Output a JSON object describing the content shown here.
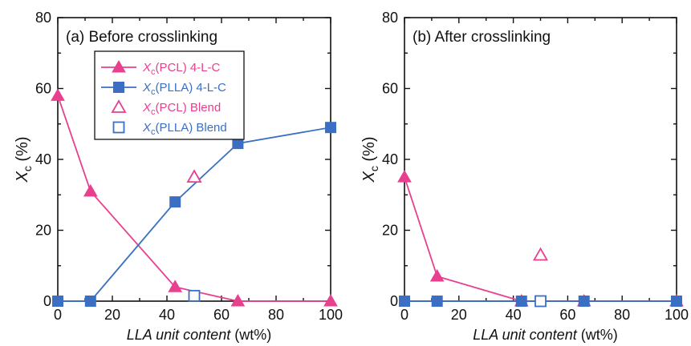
{
  "colors": {
    "pcl": "#e8408e",
    "plla": "#3a6fc4"
  },
  "chart_data": [
    {
      "type": "line",
      "annotation": "(a) Before crosslinking",
      "xlabel_italic": "LLA unit content",
      "xlabel_unit": " (wt%)",
      "ylabel_sym": "X",
      "ylabel_sub": "c",
      "ylabel_unit": " (%)",
      "xlim": [
        0,
        100
      ],
      "ylim": [
        0,
        80
      ],
      "xticks": [
        0,
        20,
        40,
        60,
        80,
        100
      ],
      "yticks": [
        0,
        20,
        40,
        60,
        80
      ],
      "grid": false,
      "legend_position": "top-left",
      "series": [
        {
          "sym": "X",
          "sub": "c",
          "label": "(PCL) 4-L-C",
          "marker": "triangle",
          "filled": true,
          "connected": true,
          "color": "#e8408e",
          "x": [
            0,
            12,
            43,
            66,
            100
          ],
          "y": [
            58,
            31,
            4,
            0,
            0
          ]
        },
        {
          "sym": "X",
          "sub": "c",
          "label": "(PLLA) 4-L-C",
          "marker": "square",
          "filled": true,
          "connected": true,
          "color": "#3a6fc4",
          "x": [
            0,
            12,
            43,
            66,
            100
          ],
          "y": [
            0,
            0,
            28,
            44.5,
            49
          ]
        },
        {
          "sym": "X",
          "sub": "c",
          "label": "(PCL) Blend",
          "marker": "triangle",
          "filled": false,
          "connected": false,
          "color": "#e8408e",
          "x": [
            50
          ],
          "y": [
            35
          ]
        },
        {
          "sym": "X",
          "sub": "c",
          "label": "(PLLA) Blend",
          "marker": "square",
          "filled": false,
          "connected": false,
          "color": "#3a6fc4",
          "x": [
            50
          ],
          "y": [
            1.5
          ]
        }
      ]
    },
    {
      "type": "line",
      "annotation": "(b) After crosslinking",
      "xlabel_italic": "LLA unit content",
      "xlabel_unit": " (wt%)",
      "ylabel_sym": "X",
      "ylabel_sub": "c",
      "ylabel_unit": " (%)",
      "xlim": [
        0,
        100
      ],
      "ylim": [
        0,
        80
      ],
      "xticks": [
        0,
        20,
        40,
        60,
        80,
        100
      ],
      "yticks": [
        0,
        20,
        40,
        60,
        80
      ],
      "grid": false,
      "series": [
        {
          "marker": "triangle",
          "filled": true,
          "connected": true,
          "color": "#e8408e",
          "x": [
            0,
            12,
            43,
            66,
            100
          ],
          "y": [
            35,
            7,
            0,
            0,
            0
          ]
        },
        {
          "marker": "square",
          "filled": true,
          "connected": true,
          "color": "#3a6fc4",
          "x": [
            0,
            12,
            43,
            66,
            100
          ],
          "y": [
            0,
            0,
            0,
            0,
            0
          ]
        },
        {
          "marker": "triangle",
          "filled": false,
          "connected": false,
          "color": "#e8408e",
          "x": [
            50
          ],
          "y": [
            13
          ]
        },
        {
          "marker": "square",
          "filled": false,
          "connected": false,
          "color": "#3a6fc4",
          "x": [
            50
          ],
          "y": [
            0
          ]
        }
      ]
    }
  ]
}
